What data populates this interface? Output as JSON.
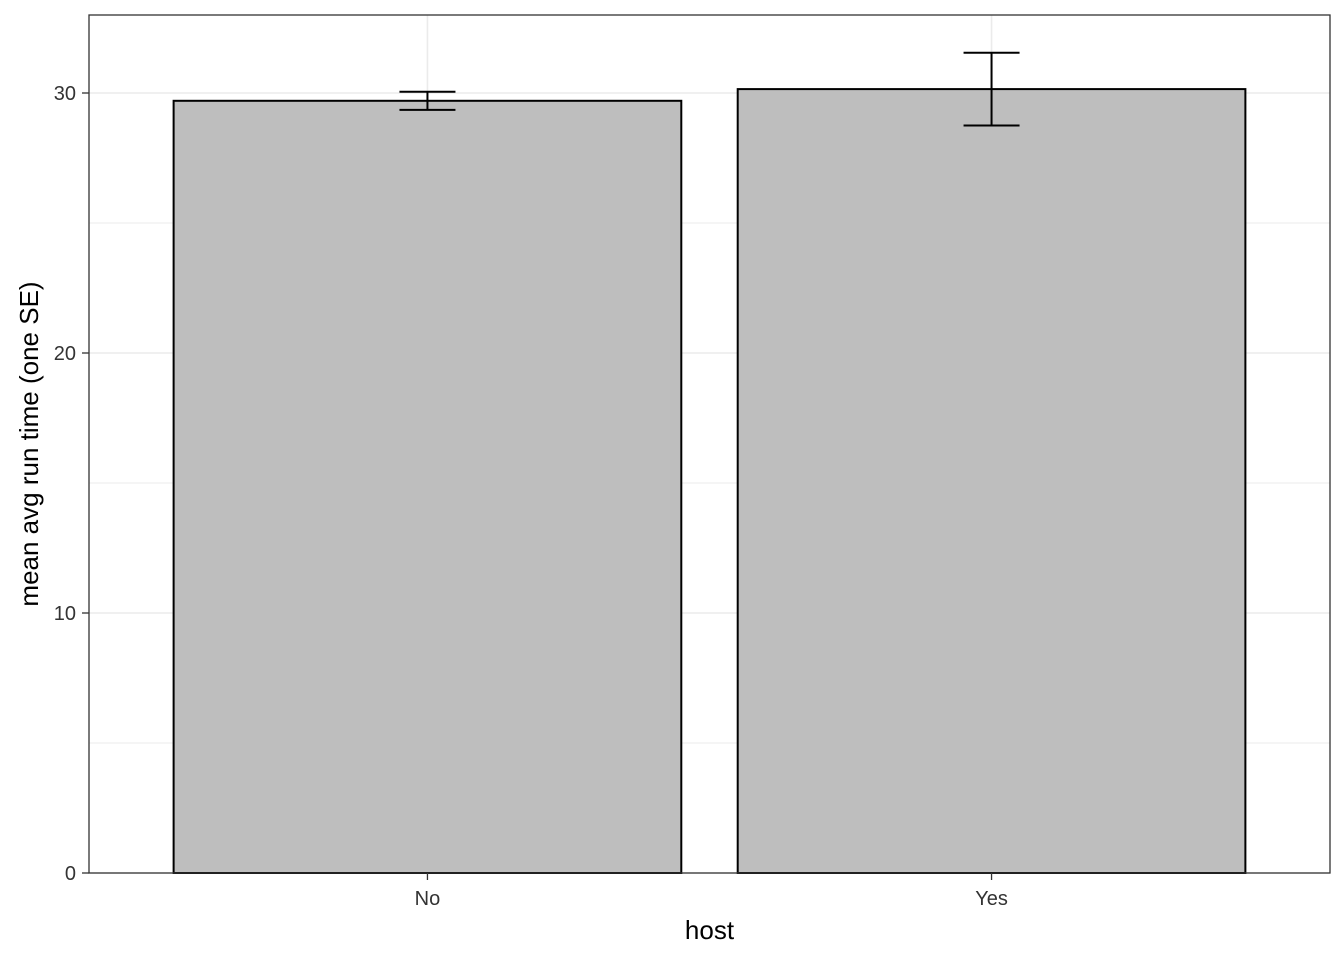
{
  "chart_data": {
    "type": "bar",
    "categories": [
      "No",
      "Yes"
    ],
    "values": [
      29.7,
      30.15
    ],
    "error": [
      {
        "low": 29.35,
        "high": 30.05
      },
      {
        "low": 28.75,
        "high": 31.55
      }
    ],
    "xlabel": "host",
    "ylabel": "mean avg run time (one SE)",
    "ylim": [
      0,
      33
    ],
    "yticks": [
      0,
      10,
      20,
      30
    ],
    "grid": true,
    "colors": {
      "bar_fill": "#bebebe",
      "bar_stroke": "#000000",
      "grid": "#ebebeb",
      "panel_border": "#333333"
    }
  }
}
